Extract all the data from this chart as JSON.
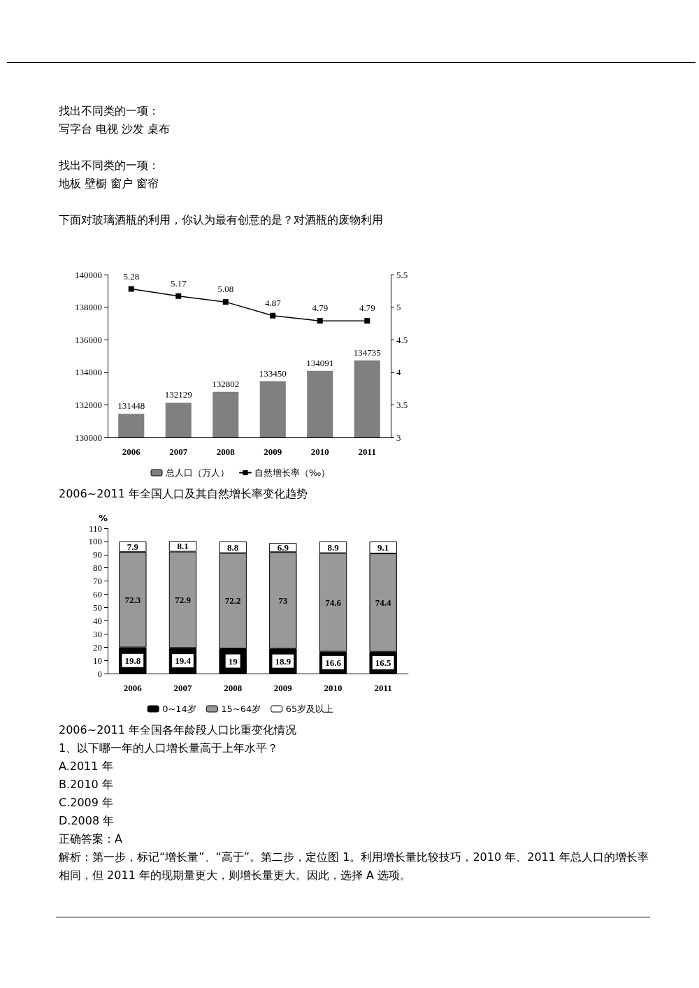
{
  "chart_data": [
    {
      "type": "bar",
      "title": "2006~2011 年全国人口及其自然增长率变化趋势",
      "annotations": [
        "找出不同类的一项：",
        "写字台 电视 沙发 桌布",
        "找出不同类的一项：",
        "地板 壁橱 窗户 窗帘",
        "下面对玻璃酒瓶的利用，你认为最有创意的是？对酒瓶的废物利用"
      ],
      "categories": [
        "2006",
        "2007",
        "2008",
        "2009",
        "2010",
        "2011"
      ],
      "series": [
        {
          "name": "总人口（万人）",
          "color": "#808080",
          "values": [
            131448,
            132129,
            132802,
            133450,
            134091,
            134735
          ]
        },
        {
          "name": "自然增长率（‰）",
          "type": "line",
          "axis": "y2",
          "color": "#000000",
          "values": [
            5.28,
            5.17,
            5.08,
            4.87,
            4.79,
            4.79
          ]
        }
      ],
      "ylim": [
        130000,
        140000
      ],
      "yticks": [
        130000,
        132000,
        134000,
        136000,
        138000,
        140000
      ],
      "y2lim": [
        3,
        5.5
      ],
      "y2ticks": [
        3,
        3.5,
        4,
        4.5,
        5,
        5.5
      ],
      "data_labels": true,
      "legend": "bottom",
      "marker": "square",
      "line_style": "solid"
    },
    {
      "type": "bar",
      "title": "2006~2011 年全国各年龄段人口比重变化情况",
      "ylabel": "%",
      "annotations": [
        "1、以下哪一年的人口增长量高于上年水平？",
        "A.2011 年",
        "B.2010 年",
        "C.2009 年",
        "D.2008 年",
        "正确答案：A",
        "解析：第一步，标记“增长量”、“高于”。第二步，定位图 1。利用增长量比较技巧，2010 年、2011 年总人口的增长率相同，但 2011 年的现期量更大，则增长量更大。因此，选择 A 选项。"
      ],
      "categories": [
        "2006",
        "2007",
        "2008",
        "2009",
        "2010",
        "2011"
      ],
      "stacked": true,
      "series": [
        {
          "name": "0~14岁",
          "color": "#000000",
          "values": [
            19.8,
            19.4,
            19,
            18.9,
            16.6,
            16.5
          ]
        },
        {
          "name": "15~64岁",
          "color": "#999999",
          "values": [
            72.3,
            72.9,
            72.2,
            73,
            74.6,
            74.4
          ]
        },
        {
          "name": "65岁及以上",
          "color": "#ffffff",
          "values": [
            7.9,
            8.1,
            8.8,
            6.9,
            8.9,
            9.1
          ]
        }
      ],
      "ylim": [
        0,
        110
      ],
      "yticks": [
        0,
        10,
        20,
        30,
        40,
        50,
        60,
        70,
        80,
        90,
        100,
        110
      ],
      "data_labels": true,
      "legend": "bottom"
    }
  ]
}
